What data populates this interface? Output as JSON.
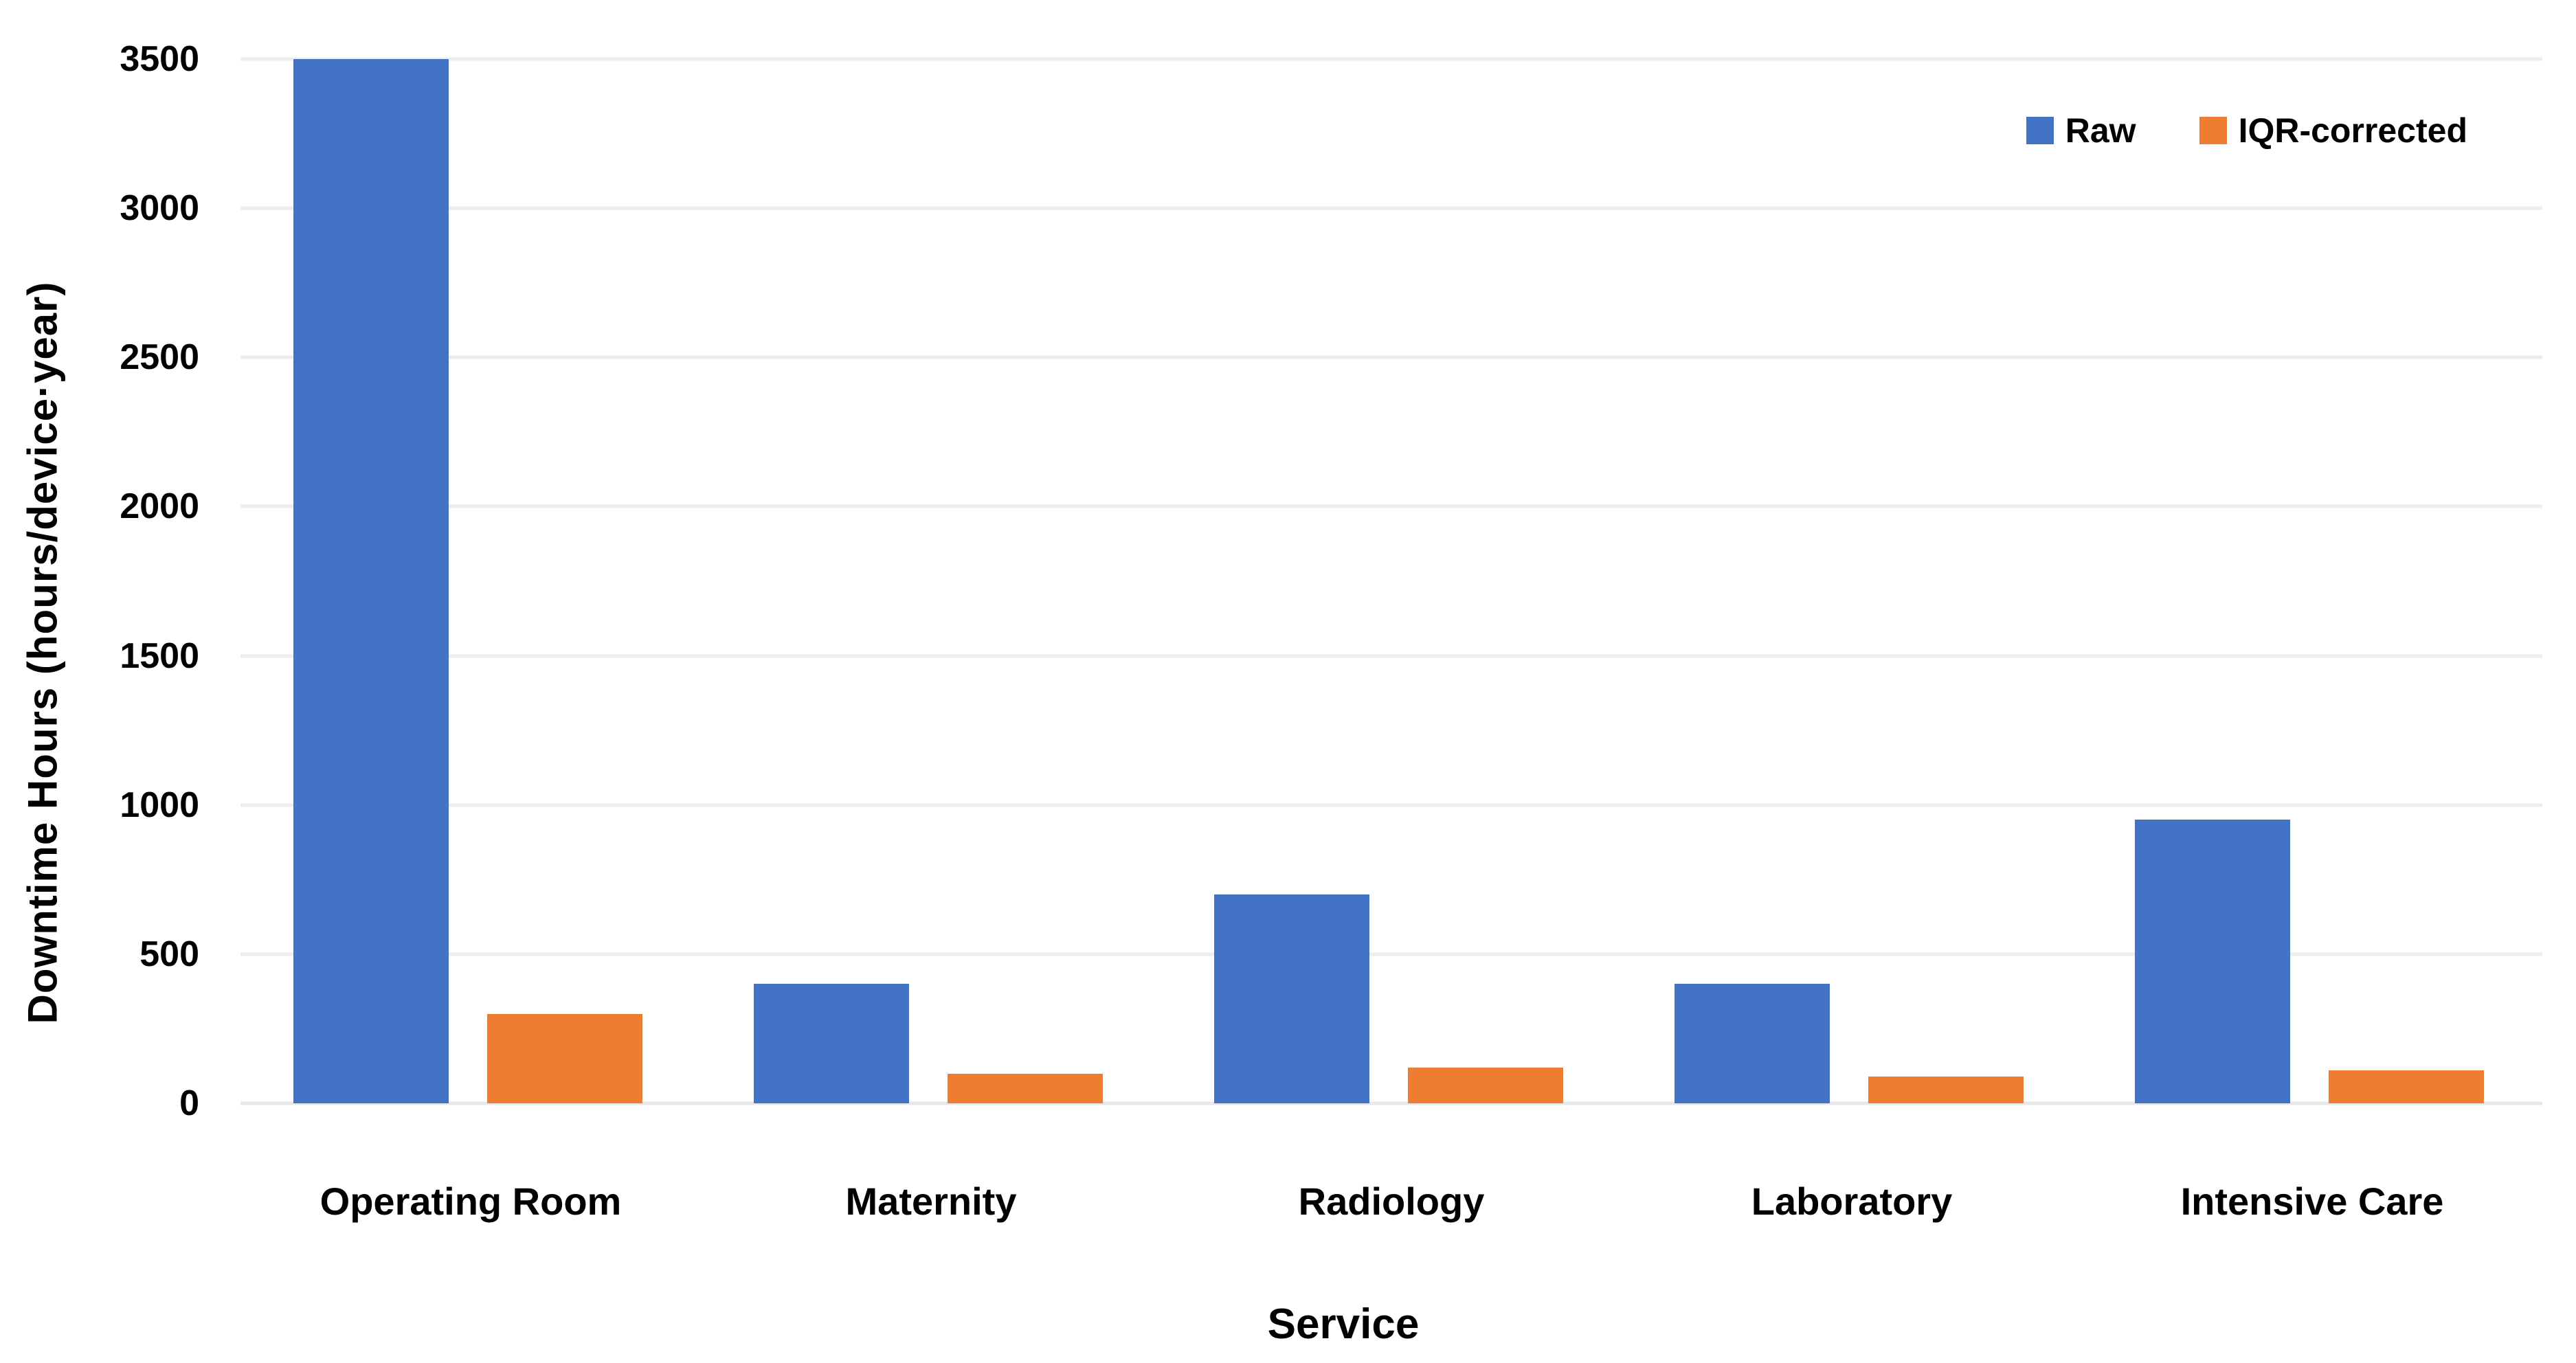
{
  "chart_data": {
    "type": "bar",
    "title": "",
    "xlabel": "Service",
    "ylabel": "Downtime Hours (hours/device·year)",
    "categories": [
      "Operating Room",
      "Maternity",
      "Radiology",
      "Laboratory",
      "Intensive Care"
    ],
    "series": [
      {
        "name": "Raw",
        "color": "#4472C4",
        "values": [
          3500,
          400,
          700,
          400,
          950
        ]
      },
      {
        "name": "IQR-corrected",
        "color": "#ED7D31",
        "values": [
          300,
          100,
          120,
          90,
          110
        ]
      }
    ],
    "ylim": [
      0,
      3500
    ],
    "ytick_step": 500,
    "yticks": [
      "0",
      "500",
      "1000",
      "1500",
      "2000",
      "2500",
      "3000",
      "3500"
    ],
    "grid": "horizontal-light-gray",
    "gridline_color": "#EDEDED",
    "text_color": "#000000",
    "background_color": "#FFFFFF",
    "legend_position": "top-right"
  }
}
